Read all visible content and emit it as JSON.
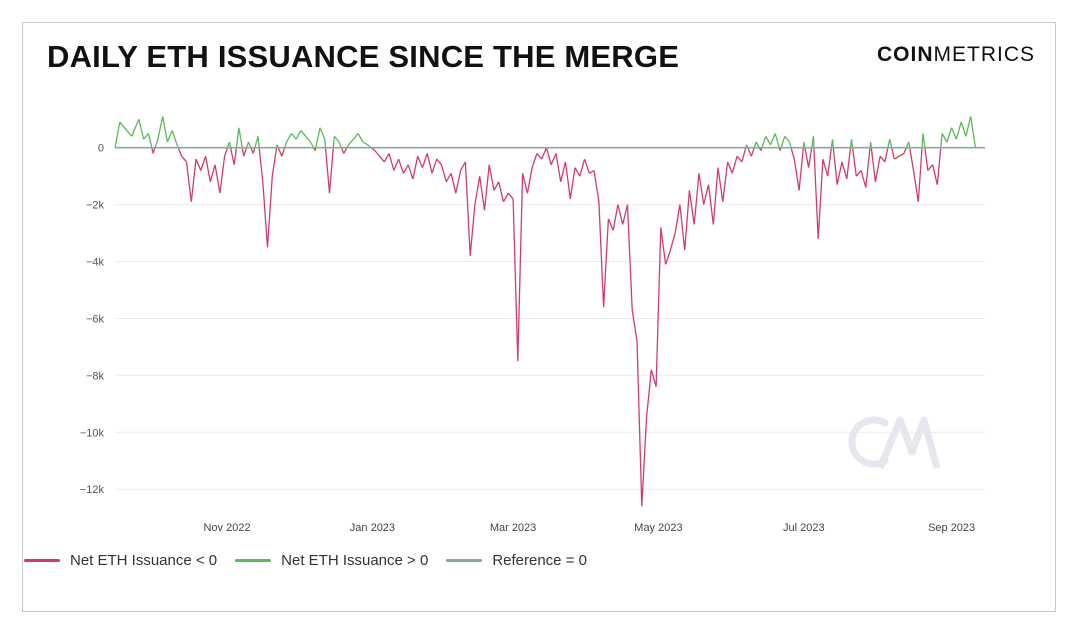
{
  "header": {
    "title": "DAILY ETH ISSUANCE SINCE THE MERGE",
    "brand_bold": "COIN",
    "brand_light": "METRICS"
  },
  "colors": {
    "negative": "#d23d66",
    "positive": "#5cb85c",
    "reference": "#8fa3a3"
  },
  "chart_data": {
    "type": "line",
    "title": "DAILY ETH ISSUANCE SINCE THE MERGE",
    "xlabel": "",
    "ylabel": "",
    "ylim": [
      -12800,
      1500
    ],
    "xlim": [
      "2022-09-15",
      "2023-09-15"
    ],
    "yticks": [
      {
        "value": 0,
        "label": "0"
      },
      {
        "value": -2000,
        "label": "−2k"
      },
      {
        "value": -4000,
        "label": "−4k"
      },
      {
        "value": -6000,
        "label": "−6k"
      },
      {
        "value": -8000,
        "label": "−8k"
      },
      {
        "value": -10000,
        "label": "−10k"
      },
      {
        "value": -12000,
        "label": "−12k"
      }
    ],
    "xticks": [
      {
        "value": "2022-11-01",
        "label": "Nov 2022"
      },
      {
        "value": "2023-01-01",
        "label": "Jan 2023"
      },
      {
        "value": "2023-03-01",
        "label": "Mar 2023"
      },
      {
        "value": "2023-05-01",
        "label": "May 2023"
      },
      {
        "value": "2023-07-01",
        "label": "Jul 2023"
      },
      {
        "value": "2023-09-01",
        "label": "Sep 2023"
      }
    ],
    "grid": true,
    "legend_position": "bottom-left",
    "series": [
      {
        "name": "Net ETH Issuance < 0",
        "role": "negative"
      },
      {
        "name": "Net ETH Issuance > 0",
        "role": "positive"
      },
      {
        "name": "Reference = 0",
        "role": "reference"
      }
    ],
    "points": [
      [
        "2022-09-15",
        0
      ],
      [
        "2022-09-17",
        900
      ],
      [
        "2022-09-20",
        600
      ],
      [
        "2022-09-22",
        400
      ],
      [
        "2022-09-25",
        1000
      ],
      [
        "2022-09-27",
        300
      ],
      [
        "2022-09-29",
        500
      ],
      [
        "2022-10-01",
        -200
      ],
      [
        "2022-10-03",
        300
      ],
      [
        "2022-10-05",
        1100
      ],
      [
        "2022-10-07",
        200
      ],
      [
        "2022-10-09",
        600
      ],
      [
        "2022-10-11",
        100
      ],
      [
        "2022-10-13",
        -300
      ],
      [
        "2022-10-15",
        -500
      ],
      [
        "2022-10-17",
        -1900
      ],
      [
        "2022-10-19",
        -400
      ],
      [
        "2022-10-21",
        -800
      ],
      [
        "2022-10-23",
        -300
      ],
      [
        "2022-10-25",
        -1200
      ],
      [
        "2022-10-27",
        -600
      ],
      [
        "2022-10-29",
        -1600
      ],
      [
        "2022-10-31",
        -300
      ],
      [
        "2022-11-02",
        200
      ],
      [
        "2022-11-04",
        -600
      ],
      [
        "2022-11-06",
        700
      ],
      [
        "2022-11-08",
        -300
      ],
      [
        "2022-11-10",
        200
      ],
      [
        "2022-11-12",
        -200
      ],
      [
        "2022-11-14",
        400
      ],
      [
        "2022-11-16",
        -1200
      ],
      [
        "2022-11-18",
        -3500
      ],
      [
        "2022-11-20",
        -1000
      ],
      [
        "2022-11-22",
        100
      ],
      [
        "2022-11-24",
        -300
      ],
      [
        "2022-11-26",
        200
      ],
      [
        "2022-11-28",
        500
      ],
      [
        "2022-11-30",
        300
      ],
      [
        "2022-12-02",
        600
      ],
      [
        "2022-12-04",
        400
      ],
      [
        "2022-12-06",
        200
      ],
      [
        "2022-12-08",
        -100
      ],
      [
        "2022-12-10",
        700
      ],
      [
        "2022-12-12",
        300
      ],
      [
        "2022-12-14",
        -1600
      ],
      [
        "2022-12-16",
        400
      ],
      [
        "2022-12-18",
        200
      ],
      [
        "2022-12-20",
        -200
      ],
      [
        "2022-12-22",
        100
      ],
      [
        "2022-12-24",
        300
      ],
      [
        "2022-12-26",
        500
      ],
      [
        "2022-12-28",
        200
      ],
      [
        "2022-12-30",
        100
      ],
      [
        "2023-01-02",
        -100
      ],
      [
        "2023-01-04",
        -300
      ],
      [
        "2023-01-06",
        -500
      ],
      [
        "2023-01-08",
        -200
      ],
      [
        "2023-01-10",
        -800
      ],
      [
        "2023-01-12",
        -400
      ],
      [
        "2023-01-14",
        -900
      ],
      [
        "2023-01-16",
        -600
      ],
      [
        "2023-01-18",
        -1100
      ],
      [
        "2023-01-20",
        -300
      ],
      [
        "2023-01-22",
        -700
      ],
      [
        "2023-01-24",
        -200
      ],
      [
        "2023-01-26",
        -900
      ],
      [
        "2023-01-28",
        -400
      ],
      [
        "2023-01-30",
        -600
      ],
      [
        "2023-02-01",
        -1200
      ],
      [
        "2023-02-03",
        -900
      ],
      [
        "2023-02-05",
        -1600
      ],
      [
        "2023-02-07",
        -800
      ],
      [
        "2023-02-09",
        -500
      ],
      [
        "2023-02-11",
        -3800
      ],
      [
        "2023-02-13",
        -2000
      ],
      [
        "2023-02-15",
        -1000
      ],
      [
        "2023-02-17",
        -2200
      ],
      [
        "2023-02-19",
        -600
      ],
      [
        "2023-02-21",
        -1500
      ],
      [
        "2023-02-23",
        -1200
      ],
      [
        "2023-02-25",
        -1900
      ],
      [
        "2023-02-27",
        -1600
      ],
      [
        "2023-03-01",
        -1800
      ],
      [
        "2023-03-03",
        -7500
      ],
      [
        "2023-03-05",
        -900
      ],
      [
        "2023-03-07",
        -1600
      ],
      [
        "2023-03-09",
        -700
      ],
      [
        "2023-03-11",
        -200
      ],
      [
        "2023-03-13",
        -400
      ],
      [
        "2023-03-15",
        0
      ],
      [
        "2023-03-17",
        -600
      ],
      [
        "2023-03-19",
        -200
      ],
      [
        "2023-03-21",
        -1200
      ],
      [
        "2023-03-23",
        -500
      ],
      [
        "2023-03-25",
        -1800
      ],
      [
        "2023-03-27",
        -700
      ],
      [
        "2023-03-29",
        -1000
      ],
      [
        "2023-03-31",
        -400
      ],
      [
        "2023-04-02",
        -900
      ],
      [
        "2023-04-04",
        -800
      ],
      [
        "2023-04-06",
        -1900
      ],
      [
        "2023-04-08",
        -5600
      ],
      [
        "2023-04-10",
        -2500
      ],
      [
        "2023-04-12",
        -2900
      ],
      [
        "2023-04-14",
        -2000
      ],
      [
        "2023-04-16",
        -2700
      ],
      [
        "2023-04-18",
        -2000
      ],
      [
        "2023-04-20",
        -5700
      ],
      [
        "2023-04-22",
        -6800
      ],
      [
        "2023-04-24",
        -12600
      ],
      [
        "2023-04-26",
        -9500
      ],
      [
        "2023-04-28",
        -7800
      ],
      [
        "2023-04-30",
        -8400
      ],
      [
        "2023-05-02",
        -2800
      ],
      [
        "2023-05-04",
        -4100
      ],
      [
        "2023-05-06",
        -3600
      ],
      [
        "2023-05-08",
        -3000
      ],
      [
        "2023-05-10",
        -2000
      ],
      [
        "2023-05-12",
        -3600
      ],
      [
        "2023-05-14",
        -1500
      ],
      [
        "2023-05-16",
        -2700
      ],
      [
        "2023-05-18",
        -900
      ],
      [
        "2023-05-20",
        -2000
      ],
      [
        "2023-05-22",
        -1300
      ],
      [
        "2023-05-24",
        -2700
      ],
      [
        "2023-05-26",
        -700
      ],
      [
        "2023-05-28",
        -1900
      ],
      [
        "2023-05-30",
        -500
      ],
      [
        "2023-06-01",
        -900
      ],
      [
        "2023-06-03",
        -300
      ],
      [
        "2023-06-05",
        -500
      ],
      [
        "2023-06-07",
        100
      ],
      [
        "2023-06-09",
        -300
      ],
      [
        "2023-06-11",
        200
      ],
      [
        "2023-06-13",
        -100
      ],
      [
        "2023-06-15",
        400
      ],
      [
        "2023-06-17",
        100
      ],
      [
        "2023-06-19",
        500
      ],
      [
        "2023-06-21",
        -100
      ],
      [
        "2023-06-23",
        400
      ],
      [
        "2023-06-25",
        200
      ],
      [
        "2023-06-27",
        -400
      ],
      [
        "2023-06-29",
        -1500
      ],
      [
        "2023-07-01",
        200
      ],
      [
        "2023-07-03",
        -700
      ],
      [
        "2023-07-05",
        400
      ],
      [
        "2023-07-07",
        -3200
      ],
      [
        "2023-07-09",
        -400
      ],
      [
        "2023-07-11",
        -1000
      ],
      [
        "2023-07-13",
        300
      ],
      [
        "2023-07-15",
        -1300
      ],
      [
        "2023-07-17",
        -500
      ],
      [
        "2023-07-19",
        -1100
      ],
      [
        "2023-07-21",
        300
      ],
      [
        "2023-07-23",
        -1000
      ],
      [
        "2023-07-25",
        -800
      ],
      [
        "2023-07-27",
        -1400
      ],
      [
        "2023-07-29",
        200
      ],
      [
        "2023-07-31",
        -1200
      ],
      [
        "2023-08-02",
        -300
      ],
      [
        "2023-08-04",
        -500
      ],
      [
        "2023-08-06",
        300
      ],
      [
        "2023-08-08",
        -400
      ],
      [
        "2023-08-10",
        -300
      ],
      [
        "2023-08-12",
        -200
      ],
      [
        "2023-08-14",
        200
      ],
      [
        "2023-08-16",
        -800
      ],
      [
        "2023-08-18",
        -1900
      ],
      [
        "2023-08-20",
        500
      ],
      [
        "2023-08-22",
        -800
      ],
      [
        "2023-08-24",
        -600
      ],
      [
        "2023-08-26",
        -1300
      ],
      [
        "2023-08-28",
        500
      ],
      [
        "2023-08-30",
        200
      ],
      [
        "2023-09-01",
        700
      ],
      [
        "2023-09-03",
        300
      ],
      [
        "2023-09-05",
        900
      ],
      [
        "2023-09-07",
        400
      ],
      [
        "2023-09-09",
        1100
      ],
      [
        "2023-09-11",
        0
      ]
    ]
  }
}
